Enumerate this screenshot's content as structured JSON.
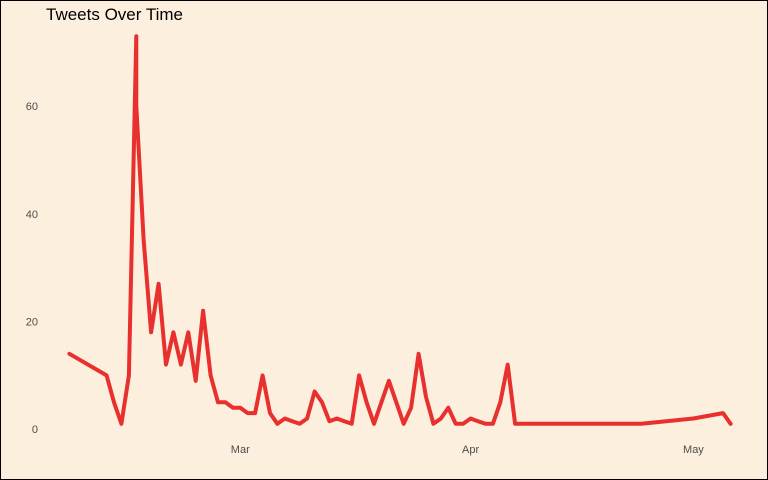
{
  "chart_data": {
    "type": "line",
    "title": "Tweets Over Time",
    "xlabel": "",
    "ylabel": "",
    "grid": false,
    "legend": "none",
    "color": "#e8302f",
    "background": "#fdefde",
    "y_ticks": [
      0,
      20,
      40,
      60
    ],
    "x_ticks": [
      {
        "label": "Mar",
        "date": "2020-03-01"
      },
      {
        "label": "Apr",
        "date": "2020-04-01"
      },
      {
        "label": "May",
        "date": "2020-05-01"
      }
    ],
    "xlim": [
      "2020-02-06",
      "2020-05-07"
    ],
    "ylim": [
      -2,
      76
    ],
    "series": [
      {
        "x": [
          "2020-02-07",
          "2020-02-12",
          "2020-02-13",
          "2020-02-14",
          "2020-02-15",
          "2020-02-16",
          "2020-02-16",
          "2020-02-17",
          "2020-02-18",
          "2020-02-19",
          "2020-02-20",
          "2020-02-21",
          "2020-02-22",
          "2020-02-23",
          "2020-02-24",
          "2020-02-25",
          "2020-02-26",
          "2020-02-27",
          "2020-02-28",
          "2020-02-29",
          "2020-03-01",
          "2020-03-02",
          "2020-03-03",
          "2020-03-04",
          "2020-03-05",
          "2020-03-06",
          "2020-03-07",
          "2020-03-08",
          "2020-03-09",
          "2020-03-10",
          "2020-03-11",
          "2020-03-12",
          "2020-03-13",
          "2020-03-14",
          "2020-03-15",
          "2020-03-16",
          "2020-03-17",
          "2020-03-18",
          "2020-03-19",
          "2020-03-20",
          "2020-03-21",
          "2020-03-22",
          "2020-03-23",
          "2020-03-24",
          "2020-03-25",
          "2020-03-26",
          "2020-03-27",
          "2020-03-28",
          "2020-03-29",
          "2020-03-30",
          "2020-03-31",
          "2020-04-01",
          "2020-04-02",
          "2020-04-03",
          "2020-04-04",
          "2020-04-05",
          "2020-04-06",
          "2020-04-07",
          "2020-04-08",
          "2020-04-09",
          "2020-04-24",
          "2020-05-01",
          "2020-05-05",
          "2020-05-06"
        ],
        "y": [
          14,
          10,
          5,
          1,
          10,
          73,
          60,
          35,
          18,
          27,
          12,
          18,
          12,
          18,
          9,
          22,
          10,
          5,
          5,
          4,
          4,
          3,
          3,
          10,
          3,
          1,
          2,
          1.5,
          1,
          2,
          7,
          5,
          1.5,
          2,
          1.5,
          1,
          10,
          5,
          1,
          5,
          9,
          5,
          1,
          4,
          14,
          6,
          1,
          2,
          4,
          1,
          1,
          2,
          1.5,
          1,
          1,
          5,
          12,
          1,
          1,
          1,
          1,
          2,
          3,
          1
        ]
      }
    ]
  }
}
